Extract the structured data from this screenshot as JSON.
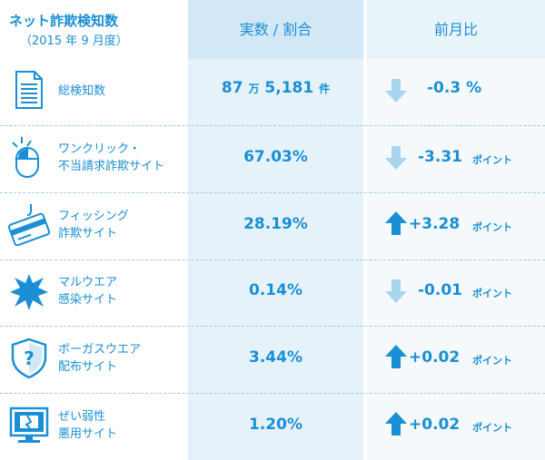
{
  "header": {
    "title": "ネット詐欺検知数",
    "subtitle": "（2015 年 9 月度）",
    "col_value": "実数 / 割合",
    "col_change": "前月比"
  },
  "rows": [
    {
      "label1": "総検知数",
      "label2": "",
      "value_main": "87",
      "value_unit1": "万",
      "value_rest": "5,181",
      "value_unit2": "件",
      "direction": "down",
      "change": "-0.3 %",
      "change_unit": ""
    },
    {
      "label1": "ワンクリック・",
      "label2": "不当請求詐欺サイト",
      "value_main": "67.03%",
      "direction": "down",
      "change": "-3.31",
      "change_unit": "ポイント"
    },
    {
      "label1": "フィッシング",
      "label2": "詐欺サイト",
      "value_main": "28.19%",
      "direction": "up",
      "change": "+3.28",
      "change_unit": "ポイント"
    },
    {
      "label1": "マルウエア",
      "label2": "感染サイト",
      "value_main": "0.14%",
      "direction": "down",
      "change": "-0.01",
      "change_unit": "ポイント"
    },
    {
      "label1": "ボーガスウエア",
      "label2": "配布サイト",
      "value_main": "3.44%",
      "direction": "up",
      "change": "+0.02",
      "change_unit": "ポイント"
    },
    {
      "label1": "ぜい弱性",
      "label2": "悪用サイト",
      "value_main": "1.20%",
      "direction": "up",
      "change": "+0.02",
      "change_unit": "ポイント"
    }
  ],
  "colors": {
    "primary": "#1a8fd6",
    "arrow_up": "#1a8fd6",
    "arrow_down": "#a9d6ee"
  },
  "icons": [
    "document-icon",
    "mouse-click-icon",
    "credit-card-hook-icon",
    "malware-burst-icon",
    "shield-question-icon",
    "monitor-broken-icon"
  ]
}
